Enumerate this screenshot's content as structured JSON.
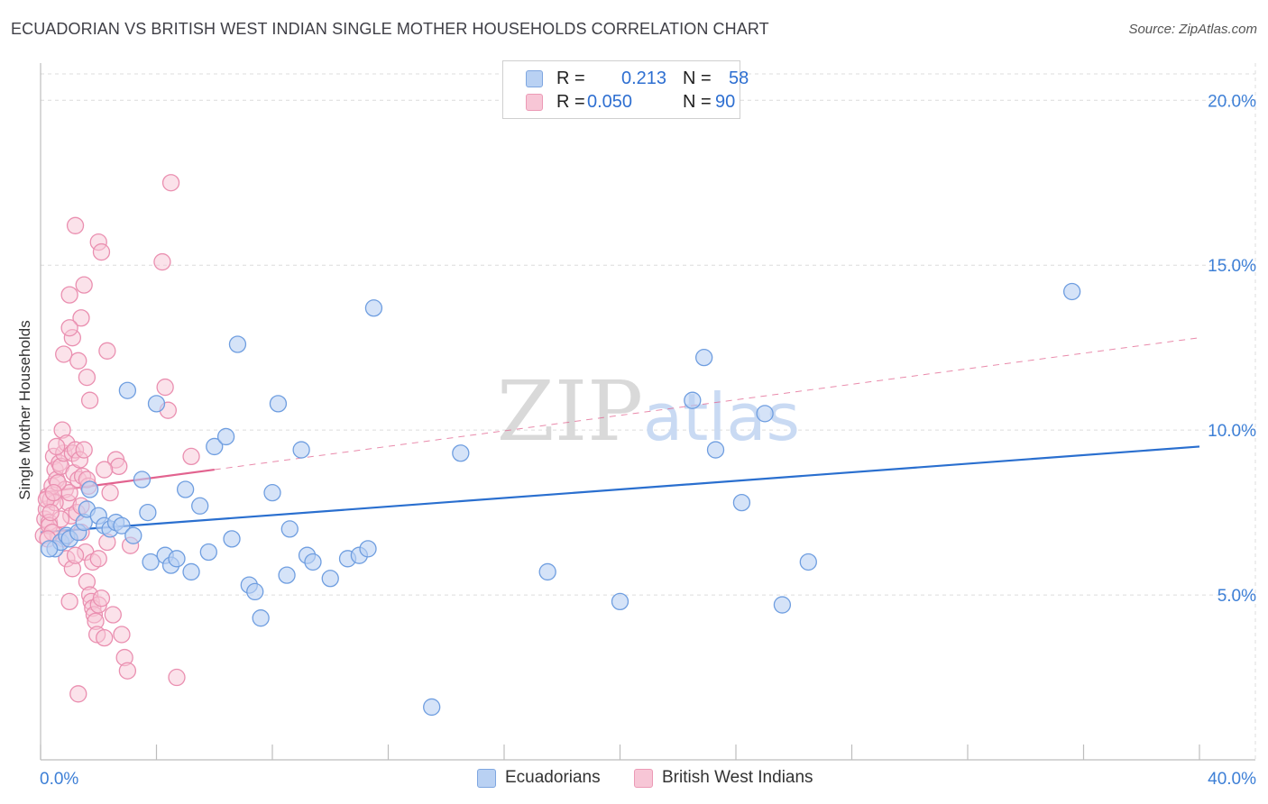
{
  "header": {
    "title": "ECUADORIAN VS BRITISH WEST INDIAN SINGLE MOTHER HOUSEHOLDS CORRELATION CHART",
    "source": "Source: ZipAtlas.com"
  },
  "legend": {
    "ecuadorians": {
      "r_label": "R =",
      "r_value": "0.213",
      "n_label": "N =",
      "n_value": "58"
    },
    "bwi": {
      "r_label": "R =",
      "r_value": "0.050",
      "n_label": "N =",
      "n_value": "90"
    }
  },
  "watermark": {
    "zip": "ZIP",
    "atlas": "atlas"
  },
  "colors": {
    "blue_fill": "#b9d1f3",
    "blue_stroke": "#6f9ee0",
    "blue_line": "#2a6fcf",
    "pink_fill": "#f7c6d6",
    "pink_stroke": "#ea8fb0",
    "pink_line": "#e2638f",
    "grid": "#dcdcdc",
    "tick_label": "#3d7fd6"
  },
  "chart_data": {
    "type": "scatter",
    "title": "ECUADORIAN VS BRITISH WEST INDIAN SINGLE MOTHER HOUSEHOLDS CORRELATION CHART",
    "xlabel": "",
    "ylabel": "Single Mother Households",
    "xlim": [
      0,
      40
    ],
    "ylim": [
      0,
      20.8
    ],
    "x_tick_labels": [
      "0.0%",
      "40.0%"
    ],
    "y_ticks": [
      5,
      10,
      15,
      20
    ],
    "y_tick_labels": [
      "5.0%",
      "10.0%",
      "15.0%",
      "20.0%"
    ],
    "series": [
      {
        "name": "Ecuadorians",
        "color": "#b9d1f3",
        "points": [
          [
            0.5,
            6.4
          ],
          [
            0.7,
            6.6
          ],
          [
            0.9,
            6.8
          ],
          [
            1.0,
            6.7
          ],
          [
            1.3,
            6.9
          ],
          [
            1.5,
            7.2
          ],
          [
            1.7,
            8.2
          ],
          [
            1.6,
            7.6
          ],
          [
            2.0,
            7.4
          ],
          [
            2.2,
            7.1
          ],
          [
            2.4,
            7.0
          ],
          [
            2.6,
            7.2
          ],
          [
            2.8,
            7.1
          ],
          [
            3.0,
            11.2
          ],
          [
            3.2,
            6.8
          ],
          [
            3.5,
            8.5
          ],
          [
            3.7,
            7.5
          ],
          [
            3.8,
            6.0
          ],
          [
            4.0,
            10.8
          ],
          [
            4.3,
            6.2
          ],
          [
            4.5,
            5.9
          ],
          [
            4.7,
            6.1
          ],
          [
            5.0,
            8.2
          ],
          [
            5.2,
            5.7
          ],
          [
            5.5,
            7.7
          ],
          [
            5.8,
            6.3
          ],
          [
            6.0,
            9.5
          ],
          [
            6.6,
            6.7
          ],
          [
            6.4,
            9.8
          ],
          [
            6.8,
            12.6
          ],
          [
            7.2,
            5.3
          ],
          [
            7.4,
            5.1
          ],
          [
            7.6,
            4.3
          ],
          [
            8.0,
            8.1
          ],
          [
            8.2,
            10.8
          ],
          [
            8.5,
            5.6
          ],
          [
            8.6,
            7.0
          ],
          [
            9.0,
            9.4
          ],
          [
            9.2,
            6.2
          ],
          [
            9.4,
            6.0
          ],
          [
            10.0,
            5.5
          ],
          [
            10.6,
            6.1
          ],
          [
            11.0,
            6.2
          ],
          [
            11.3,
            6.4
          ],
          [
            11.5,
            13.7
          ],
          [
            13.5,
            1.6
          ],
          [
            14.5,
            9.3
          ],
          [
            17.5,
            5.7
          ],
          [
            20.0,
            4.8
          ],
          [
            22.5,
            10.9
          ],
          [
            22.9,
            12.2
          ],
          [
            23.3,
            9.4
          ],
          [
            24.2,
            7.8
          ],
          [
            25.0,
            10.5
          ],
          [
            25.6,
            4.7
          ],
          [
            26.5,
            6.0
          ],
          [
            35.6,
            14.2
          ],
          [
            0.3,
            6.4
          ]
        ]
      },
      {
        "name": "British West Indians",
        "color": "#f7c6d6",
        "points": [
          [
            0.1,
            6.8
          ],
          [
            0.15,
            7.3
          ],
          [
            0.2,
            7.6
          ],
          [
            0.25,
            8.0
          ],
          [
            0.3,
            7.2
          ],
          [
            0.35,
            7.9
          ],
          [
            0.4,
            8.3
          ],
          [
            0.45,
            9.2
          ],
          [
            0.5,
            8.8
          ],
          [
            0.55,
            8.5
          ],
          [
            0.6,
            6.8
          ],
          [
            0.65,
            9.0
          ],
          [
            0.7,
            8.9
          ],
          [
            0.75,
            10.0
          ],
          [
            0.8,
            9.3
          ],
          [
            0.85,
            8.2
          ],
          [
            0.9,
            9.6
          ],
          [
            0.95,
            7.8
          ],
          [
            1.0,
            8.1
          ],
          [
            1.05,
            7.4
          ],
          [
            1.1,
            9.3
          ],
          [
            1.15,
            8.7
          ],
          [
            1.2,
            9.4
          ],
          [
            1.25,
            7.5
          ],
          [
            1.3,
            8.5
          ],
          [
            1.35,
            9.1
          ],
          [
            1.4,
            6.9
          ],
          [
            1.45,
            8.6
          ],
          [
            1.5,
            9.4
          ],
          [
            1.55,
            6.3
          ],
          [
            1.6,
            5.4
          ],
          [
            1.65,
            8.3
          ],
          [
            1.7,
            5.0
          ],
          [
            1.75,
            4.8
          ],
          [
            1.8,
            4.6
          ],
          [
            1.85,
            4.4
          ],
          [
            1.9,
            4.2
          ],
          [
            1.95,
            3.8
          ],
          [
            2.0,
            4.7
          ],
          [
            2.1,
            4.9
          ],
          [
            2.2,
            3.7
          ],
          [
            2.3,
            6.6
          ],
          [
            2.4,
            8.1
          ],
          [
            2.5,
            4.4
          ],
          [
            2.6,
            9.1
          ],
          [
            2.7,
            8.9
          ],
          [
            2.8,
            3.8
          ],
          [
            2.9,
            3.1
          ],
          [
            3.0,
            2.7
          ],
          [
            3.1,
            6.5
          ],
          [
            1.0,
            14.1
          ],
          [
            1.1,
            12.8
          ],
          [
            1.2,
            16.2
          ],
          [
            1.3,
            12.1
          ],
          [
            1.4,
            13.4
          ],
          [
            1.5,
            14.4
          ],
          [
            1.6,
            11.6
          ],
          [
            1.7,
            10.9
          ],
          [
            2.0,
            15.7
          ],
          [
            2.1,
            15.4
          ],
          [
            2.3,
            12.4
          ],
          [
            1.0,
            13.1
          ],
          [
            0.8,
            12.3
          ],
          [
            4.2,
            15.1
          ],
          [
            4.5,
            17.5
          ],
          [
            4.3,
            11.3
          ],
          [
            4.4,
            10.6
          ],
          [
            5.2,
            9.2
          ],
          [
            4.7,
            2.5
          ],
          [
            1.3,
            2.0
          ],
          [
            0.5,
            7.8
          ],
          [
            0.6,
            8.4
          ],
          [
            0.7,
            7.3
          ],
          [
            0.8,
            6.7
          ],
          [
            0.9,
            6.1
          ],
          [
            1.0,
            4.8
          ],
          [
            1.1,
            5.8
          ],
          [
            1.2,
            6.2
          ],
          [
            1.4,
            7.7
          ],
          [
            1.6,
            8.5
          ],
          [
            1.8,
            6.0
          ],
          [
            2.0,
            6.1
          ],
          [
            2.2,
            8.8
          ],
          [
            0.3,
            7.1
          ],
          [
            0.4,
            6.9
          ],
          [
            0.2,
            7.9
          ],
          [
            0.25,
            6.7
          ],
          [
            0.35,
            7.5
          ],
          [
            0.45,
            8.1
          ],
          [
            0.55,
            9.5
          ]
        ]
      }
    ],
    "trendlines": [
      {
        "series": "Ecuadorians",
        "x": [
          0,
          40
        ],
        "y": [
          6.9,
          9.5
        ],
        "style": "solid"
      },
      {
        "series": "British West Indians",
        "x": [
          0,
          6
        ],
        "y": [
          8.1,
          8.8
        ],
        "style": "solid"
      },
      {
        "series": "British West Indians",
        "x": [
          6,
          40
        ],
        "y": [
          8.8,
          12.8
        ],
        "style": "dashed"
      }
    ],
    "legend_position": "top-center"
  },
  "bottom_legend": {
    "ecuadorians": "Ecuadorians",
    "bwi": "British West Indians"
  }
}
